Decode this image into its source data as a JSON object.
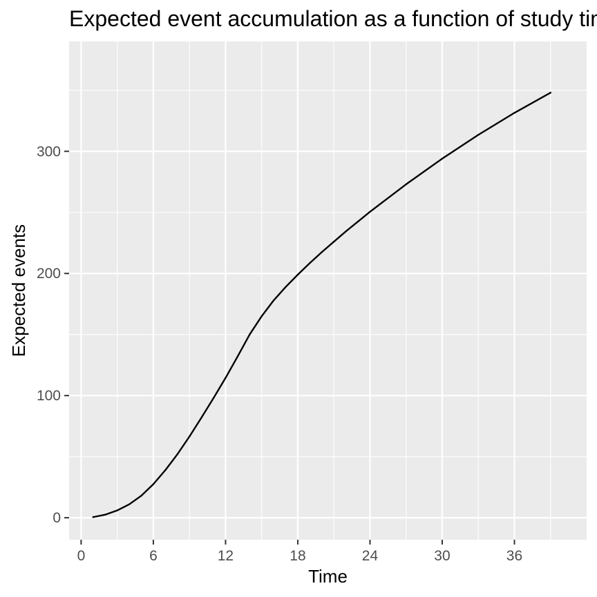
{
  "chart_data": {
    "type": "line",
    "title": "Expected event accumulation as a function of study time",
    "xlabel": "Time",
    "ylabel": "Expected events",
    "x_ticks": [
      0,
      6,
      12,
      18,
      24,
      30,
      36
    ],
    "y_ticks": [
      0,
      100,
      200,
      300
    ],
    "xlim": [
      -1,
      42
    ],
    "ylim": [
      -18,
      390
    ],
    "grid": true,
    "series": [
      {
        "x": [
          1,
          2,
          3,
          4,
          5,
          6,
          7,
          8,
          9,
          10,
          11,
          12,
          13,
          14,
          15,
          16,
          17,
          18,
          19,
          20,
          21,
          22,
          23,
          24,
          25,
          26,
          27,
          28,
          29,
          30,
          31,
          32,
          33,
          34,
          35,
          36,
          37,
          38,
          39
        ],
        "y": [
          0.5,
          2.5,
          6,
          11,
          18,
          27.5,
          39,
          52,
          66.5,
          82,
          98,
          114.5,
          132,
          150,
          165,
          178,
          189,
          199,
          208.5,
          217.5,
          226,
          234.5,
          242.5,
          250.5,
          258,
          265.5,
          273,
          280,
          287,
          294,
          300.5,
          307,
          313.5,
          319.5,
          325.5,
          331.5,
          337,
          342.5,
          348
        ]
      }
    ]
  },
  "colors": {
    "panel": "#ebebeb",
    "grid": "#ffffff",
    "line": "#000000",
    "tick": "#333333",
    "tick_label": "#4d4d4d"
  }
}
